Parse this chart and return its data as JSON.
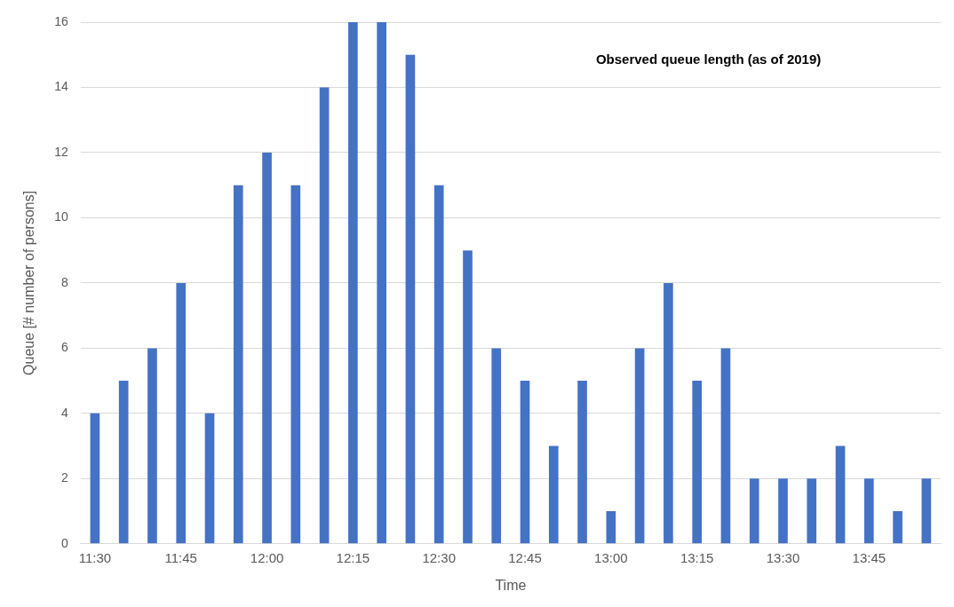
{
  "chart_data": {
    "type": "bar",
    "title": "Observed queue length (as of 2019)",
    "xlabel": "Time",
    "ylabel": "Queue [# number of persons]",
    "categories": [
      "11:30",
      null,
      null,
      "11:45",
      null,
      null,
      "12:00",
      null,
      null,
      "12:15",
      null,
      null,
      "12:30",
      null,
      null,
      "12:45",
      null,
      null,
      "13:00",
      null,
      null,
      "13:15",
      null,
      null,
      "13:30",
      null,
      null,
      "13:45",
      null,
      null
    ],
    "values": [
      4,
      5,
      6,
      8,
      4,
      11,
      12,
      11,
      14,
      16,
      16,
      15,
      11,
      9,
      6,
      5,
      3,
      5,
      1,
      6,
      8,
      5,
      6,
      2,
      2,
      2,
      3,
      2,
      1,
      2
    ],
    "color": "#4472c4",
    "ylim": [
      0,
      16
    ],
    "yticks": [
      0,
      2,
      4,
      6,
      8,
      10,
      12,
      14,
      16
    ],
    "grid": "y",
    "legend": false
  }
}
